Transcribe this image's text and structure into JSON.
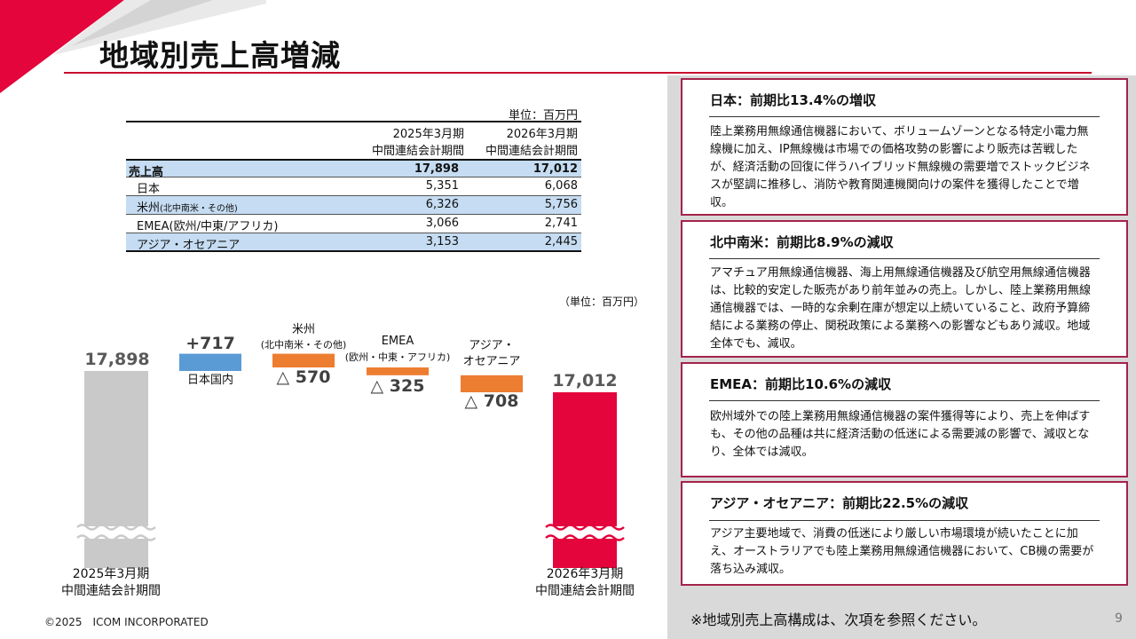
{
  "title": "地域別売上高増減",
  "table": {
    "unit": "単位：百万円",
    "col1_line1": "2025年3月期",
    "col1_line2": "中間連結会計期間",
    "col2_line1": "2026年3月期",
    "col2_line2": "中間連結会計期間",
    "rows": [
      {
        "label": "売上高",
        "label_small": "",
        "v2025": "17,898",
        "v2026": "17,012"
      },
      {
        "label": "日本",
        "label_small": "",
        "v2025": "5,351",
        "v2026": "6,068"
      },
      {
        "label": "米州",
        "label_small": "(北中南米・その他)",
        "v2025": "6,326",
        "v2026": "5,756"
      },
      {
        "label": "EMEA(欧州/中東/アフリカ)",
        "label_small": "",
        "v2025": "3,066",
        "v2026": "2,741"
      },
      {
        "label": "アジア・オセアニア",
        "label_small": "",
        "v2025": "3,153",
        "v2026": "2,445"
      }
    ]
  },
  "chart_data": {
    "type": "waterfall",
    "unit": "（単位：百万円）",
    "start": {
      "label_line1": "2025年3月期",
      "label_line2": "中間連結会計期間",
      "value": 17898,
      "value_text": "17,898"
    },
    "steps": [
      {
        "name": "日本国内",
        "name_line1": "日本国内",
        "name_line2": "",
        "change": 717,
        "change_text": "+717",
        "color": "#5b9bd5"
      },
      {
        "name": "米州",
        "name_line1": "米州",
        "name_line2": "(北中南米・その他)",
        "change": -570,
        "change_text": "△ 570",
        "color": "#ed7d31"
      },
      {
        "name": "EMEA",
        "name_line1": "EMEA",
        "name_line2": "(欧州・中東・アフリカ)",
        "change": -325,
        "change_text": "△ 325",
        "color": "#ed7d31"
      },
      {
        "name": "アジア・オセアニア",
        "name_line1": "アジア・",
        "name_line2": "オセアニア",
        "change": -708,
        "change_text": "△ 708",
        "color": "#ed7d31"
      }
    ],
    "end": {
      "label_line1": "2026年3月期",
      "label_line2": "中間連結会計期間",
      "value": 17012,
      "value_text": "17,012"
    },
    "axis_broken": true,
    "colors": {
      "start": "#c9c9c9",
      "end": "#e3053c"
    }
  },
  "cards": [
    {
      "title": "日本：前期比13.4%の増収",
      "body": "陸上業務用無線通信機器において、ボリュームゾーンとなる特定小電力無線機に加え、IP無線機は市場での価格攻勢の影響により販売は苦戦したが、経済活動の回復に伴うハイブリッド無線機の需要増でストックビジネスが堅調に推移し、消防や教育関連機関向けの案件を獲得したことで増収。"
    },
    {
      "title": "北中南米：前期比8.9%の減収",
      "body": "アマチュア用無線通信機器、海上用無線通信機器及び航空用無線通信機器は、比較的安定した販売があり前年並みの売上。しかし、陸上業務用無線通信機器では、一時的な余剰在庫が想定以上続いていること、政府予算締結による業務の停止、関税政策による業務への影響などもあり減収。地域全体でも、減収。"
    },
    {
      "title": "EMEA：前期比10.6%の減収",
      "body": "欧州域外での陸上業務用無線通信機器の案件獲得等により、売上を伸ばすも、その他の品種は共に経済活動の低迷による需要減の影響で、減収となり、全体では減収。"
    },
    {
      "title": "アジア・オセアニア：前期比22.5%の減収",
      "body": "アジア主要地域で、消費の低迷により厳しい市場環境が続いたことに加え、オーストラリアでも陸上業務用無線通信機器において、CB機の需要が落ち込み減収。"
    }
  ],
  "footer_note": "※地域別売上高構成は、次項を参照ください。",
  "page_number": "9",
  "copyright": "©2025　ICOM INCORPORATED"
}
